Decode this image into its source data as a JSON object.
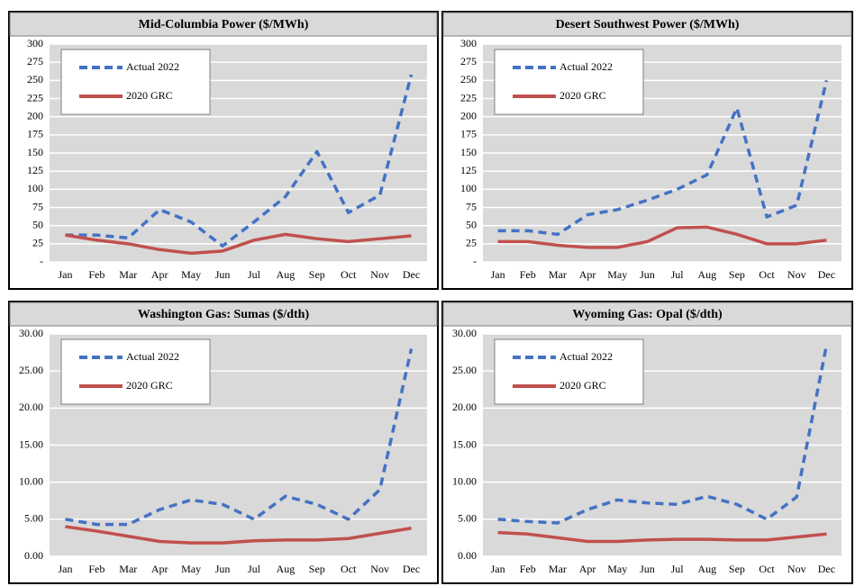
{
  "chart_data": [
    {
      "type": "line",
      "title": "Mid-Columbia Power ($/MWh)",
      "categories": [
        "Jan",
        "Feb",
        "Mar",
        "Apr",
        "May",
        "Jun",
        "Jul",
        "Aug",
        "Sep",
        "Oct",
        "Nov",
        "Dec"
      ],
      "series": [
        {
          "name": "Actual 2022",
          "color": "#4472c4",
          "style": "dashed",
          "values": [
            37,
            37,
            33,
            72,
            55,
            22,
            55,
            90,
            152,
            68,
            92,
            258
          ]
        },
        {
          "name": "2020 GRC",
          "color": "#c0504d",
          "style": "solid",
          "values": [
            37,
            30,
            25,
            17,
            12,
            15,
            30,
            38,
            32,
            28,
            32,
            36
          ]
        }
      ],
      "ylim": [
        0,
        300
      ],
      "yticks": [
        {
          "value": 0,
          "label": "-"
        },
        25,
        50,
        75,
        100,
        125,
        150,
        175,
        200,
        225,
        250,
        275,
        300
      ],
      "grid": true,
      "legend": "upper left"
    },
    {
      "type": "line",
      "title": "Desert Southwest Power ($/MWh)",
      "categories": [
        "Jan",
        "Feb",
        "Mar",
        "Apr",
        "May",
        "Jun",
        "Jul",
        "Aug",
        "Sep",
        "Oct",
        "Nov",
        "Dec"
      ],
      "series": [
        {
          "name": "Actual 2022",
          "color": "#4472c4",
          "style": "dashed",
          "values": [
            43,
            43,
            38,
            65,
            72,
            85,
            100,
            120,
            212,
            62,
            78,
            250
          ]
        },
        {
          "name": "2020 GRC",
          "color": "#c0504d",
          "style": "solid",
          "values": [
            28,
            28,
            23,
            20,
            20,
            28,
            47,
            48,
            38,
            25,
            25,
            30
          ]
        }
      ],
      "ylim": [
        0,
        300
      ],
      "yticks": [
        {
          "value": 0,
          "label": "-"
        },
        25,
        50,
        75,
        100,
        125,
        150,
        175,
        200,
        225,
        250,
        275,
        300
      ],
      "grid": true,
      "legend": "upper left"
    },
    {
      "type": "line",
      "title": "Washington Gas: Sumas ($/dth)",
      "categories": [
        "Jan",
        "Feb",
        "Mar",
        "Apr",
        "May",
        "Jun",
        "Jul",
        "Aug",
        "Sep",
        "Oct",
        "Nov",
        "Dec"
      ],
      "series": [
        {
          "name": "Actual 2022",
          "color": "#4472c4",
          "style": "dashed",
          "values": [
            5.0,
            4.3,
            4.3,
            6.3,
            7.6,
            7.0,
            5.0,
            8.1,
            7.0,
            5.0,
            9.0,
            28.0
          ]
        },
        {
          "name": "2020 GRC",
          "color": "#c0504d",
          "style": "solid",
          "values": [
            4.0,
            3.4,
            2.7,
            2.0,
            1.8,
            1.8,
            2.1,
            2.2,
            2.2,
            2.4,
            3.1,
            3.8
          ]
        }
      ],
      "ylim": [
        0,
        30
      ],
      "yticks": [
        {
          "value": 0,
          "label": "0.00"
        },
        {
          "value": 5,
          "label": "5.00"
        },
        {
          "value": 10,
          "label": "10.00"
        },
        {
          "value": 15,
          "label": "15.00"
        },
        {
          "value": 20,
          "label": "20.00"
        },
        {
          "value": 25,
          "label": "25.00"
        },
        {
          "value": 30,
          "label": "30.00"
        }
      ],
      "grid": true,
      "legend": "upper left"
    },
    {
      "type": "line",
      "title": "Wyoming Gas: Opal ($/dth)",
      "categories": [
        "Jan",
        "Feb",
        "Mar",
        "Apr",
        "May",
        "Jun",
        "Jul",
        "Aug",
        "Sep",
        "Oct",
        "Nov",
        "Dec"
      ],
      "series": [
        {
          "name": "Actual 2022",
          "color": "#4472c4",
          "style": "dashed",
          "values": [
            5.0,
            4.7,
            4.5,
            6.3,
            7.6,
            7.2,
            7.0,
            8.1,
            7.0,
            5.0,
            8.0,
            28.5
          ]
        },
        {
          "name": "2020 GRC",
          "color": "#c0504d",
          "style": "solid",
          "values": [
            3.2,
            3.0,
            2.5,
            2.0,
            2.0,
            2.2,
            2.3,
            2.3,
            2.2,
            2.2,
            2.6,
            3.0
          ]
        }
      ],
      "ylim": [
        0,
        30
      ],
      "yticks": [
        {
          "value": 0,
          "label": "0.00"
        },
        {
          "value": 5,
          "label": "5.00"
        },
        {
          "value": 10,
          "label": "10.00"
        },
        {
          "value": 15,
          "label": "15.00"
        },
        {
          "value": 20,
          "label": "20.00"
        },
        {
          "value": 25,
          "label": "25.00"
        },
        {
          "value": 30,
          "label": "30.00"
        }
      ],
      "grid": true,
      "legend": "upper left"
    }
  ]
}
